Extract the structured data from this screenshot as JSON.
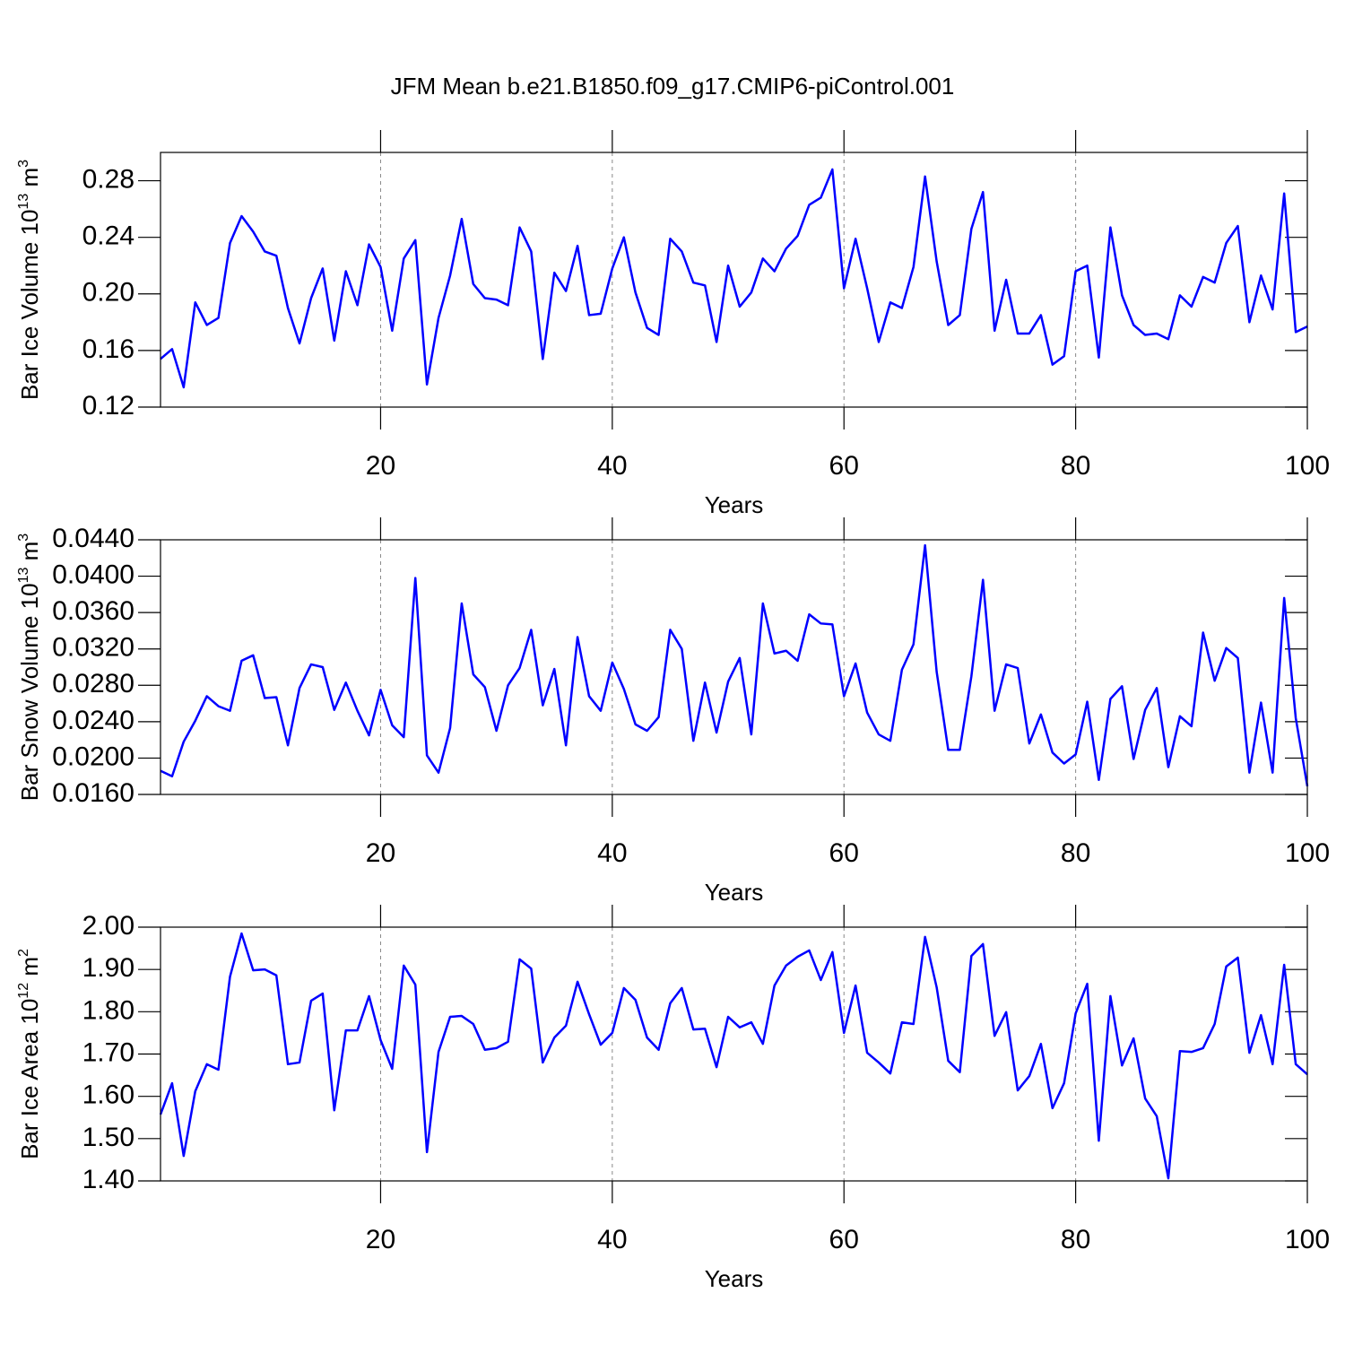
{
  "chart_data": [
    {
      "type": "line",
      "title": "JFM Mean b.e21.B1850.f09_g17.CMIP6-piControl.001",
      "ylabel": [
        "Bar Ice Volume 10",
        "13",
        " m",
        "3"
      ],
      "xlabel": "Years",
      "xlim": [
        1,
        100
      ],
      "xticks": [
        20,
        40,
        60,
        80,
        100
      ],
      "grid": true,
      "ylim": [
        0.12,
        0.3
      ],
      "yticks": [
        {
          "value": 0.12,
          "label": "0.12"
        },
        {
          "value": 0.16,
          "label": "0.16"
        },
        {
          "value": 0.2,
          "label": "0.20"
        },
        {
          "value": 0.24,
          "label": "0.24"
        },
        {
          "value": 0.28,
          "label": "0.28"
        }
      ],
      "x": [
        1,
        2,
        3,
        4,
        5,
        6,
        7,
        8,
        9,
        10,
        11,
        12,
        13,
        14,
        15,
        16,
        17,
        18,
        19,
        20,
        21,
        22,
        23,
        24,
        25,
        26,
        27,
        28,
        29,
        30,
        31,
        32,
        33,
        34,
        35,
        36,
        37,
        38,
        39,
        40,
        41,
        42,
        43,
        44,
        45,
        46,
        47,
        48,
        49,
        50,
        51,
        52,
        53,
        54,
        55,
        56,
        57,
        58,
        59,
        60,
        61,
        62,
        63,
        64,
        65,
        66,
        67,
        68,
        69,
        70,
        71,
        72,
        73,
        74,
        75,
        76,
        77,
        78,
        79,
        80,
        81,
        82,
        83,
        84,
        85,
        86,
        87,
        88,
        89,
        90,
        91,
        92,
        93,
        94,
        95,
        96,
        97,
        98,
        99,
        100
      ],
      "series": [
        {
          "color": "#0000ff",
          "values": [
            0.154,
            0.161,
            0.134,
            0.194,
            0.178,
            0.183,
            0.236,
            0.255,
            0.244,
            0.23,
            0.227,
            0.19,
            0.165,
            0.197,
            0.218,
            0.167,
            0.216,
            0.192,
            0.235,
            0.219,
            0.174,
            0.225,
            0.238,
            0.136,
            0.183,
            0.213,
            0.253,
            0.207,
            0.197,
            0.196,
            0.192,
            0.247,
            0.23,
            0.154,
            0.215,
            0.202,
            0.234,
            0.185,
            0.186,
            0.218,
            0.24,
            0.201,
            0.176,
            0.171,
            0.239,
            0.23,
            0.208,
            0.206,
            0.166,
            0.22,
            0.191,
            0.201,
            0.225,
            0.216,
            0.232,
            0.241,
            0.263,
            0.268,
            0.288,
            0.204,
            0.239,
            0.204,
            0.166,
            0.194,
            0.19,
            0.219,
            0.283,
            0.223,
            0.178,
            0.185,
            0.246,
            0.272,
            0.174,
            0.21,
            0.172,
            0.172,
            0.185,
            0.15,
            0.156,
            0.216,
            0.22,
            0.155,
            0.247,
            0.199,
            0.178,
            0.171,
            0.172,
            0.168,
            0.199,
            0.191,
            0.212,
            0.208,
            0.236,
            0.248,
            0.18,
            0.213,
            0.189,
            0.271,
            0.173,
            0.177
          ]
        }
      ]
    },
    {
      "type": "line",
      "ylabel": [
        "Bar Snow Volume 10",
        "13",
        " m",
        "3"
      ],
      "xlabel": "Years",
      "xlim": [
        1,
        100
      ],
      "xticks": [
        20,
        40,
        60,
        80,
        100
      ],
      "grid": true,
      "ylim": [
        0.016,
        0.044
      ],
      "yticks": [
        {
          "value": 0.016,
          "label": "0.0160"
        },
        {
          "value": 0.02,
          "label": "0.0200"
        },
        {
          "value": 0.024,
          "label": "0.0240"
        },
        {
          "value": 0.028,
          "label": "0.0280"
        },
        {
          "value": 0.032,
          "label": "0.0320"
        },
        {
          "value": 0.036,
          "label": "0.0360"
        },
        {
          "value": 0.04,
          "label": "0.0400"
        },
        {
          "value": 0.044,
          "label": "0.0440"
        }
      ],
      "x": [
        1,
        2,
        3,
        4,
        5,
        6,
        7,
        8,
        9,
        10,
        11,
        12,
        13,
        14,
        15,
        16,
        17,
        18,
        19,
        20,
        21,
        22,
        23,
        24,
        25,
        26,
        27,
        28,
        29,
        30,
        31,
        32,
        33,
        34,
        35,
        36,
        37,
        38,
        39,
        40,
        41,
        42,
        43,
        44,
        45,
        46,
        47,
        48,
        49,
        50,
        51,
        52,
        53,
        54,
        55,
        56,
        57,
        58,
        59,
        60,
        61,
        62,
        63,
        64,
        65,
        66,
        67,
        68,
        69,
        70,
        71,
        72,
        73,
        74,
        75,
        76,
        77,
        78,
        79,
        80,
        81,
        82,
        83,
        84,
        85,
        86,
        87,
        88,
        89,
        90,
        91,
        92,
        93,
        94,
        95,
        96,
        97,
        98,
        99,
        100
      ],
      "series": [
        {
          "color": "#0000ff",
          "values": [
            0.0186,
            0.018,
            0.0218,
            0.0241,
            0.0268,
            0.0257,
            0.0252,
            0.0307,
            0.0313,
            0.0266,
            0.0267,
            0.0214,
            0.0277,
            0.0303,
            0.03,
            0.0253,
            0.0283,
            0.0252,
            0.0225,
            0.0275,
            0.0236,
            0.0223,
            0.0398,
            0.0203,
            0.0184,
            0.0233,
            0.037,
            0.0292,
            0.0278,
            0.023,
            0.028,
            0.0299,
            0.0341,
            0.0258,
            0.0298,
            0.0214,
            0.0333,
            0.0268,
            0.0252,
            0.0305,
            0.0276,
            0.0237,
            0.023,
            0.0245,
            0.0341,
            0.032,
            0.0219,
            0.0283,
            0.0228,
            0.0284,
            0.031,
            0.0226,
            0.037,
            0.0315,
            0.0318,
            0.0307,
            0.0358,
            0.0348,
            0.0347,
            0.0268,
            0.0304,
            0.025,
            0.0226,
            0.0219,
            0.0297,
            0.0325,
            0.0434,
            0.0295,
            0.0209,
            0.0209,
            0.029,
            0.0396,
            0.0252,
            0.0303,
            0.0299,
            0.0216,
            0.0248,
            0.0206,
            0.0194,
            0.0204,
            0.0262,
            0.0176,
            0.0265,
            0.0279,
            0.0199,
            0.0253,
            0.0277,
            0.019,
            0.0246,
            0.0235,
            0.0338,
            0.0285,
            0.0321,
            0.031,
            0.0184,
            0.0261,
            0.0184,
            0.0376,
            0.0244,
            0.0169
          ]
        }
      ]
    },
    {
      "type": "line",
      "ylabel": [
        "Bar Ice Area 10",
        "12",
        " m",
        "2"
      ],
      "xlabel": "Years",
      "xlim": [
        1,
        100
      ],
      "xticks": [
        20,
        40,
        60,
        80,
        100
      ],
      "grid": true,
      "ylim": [
        1.4,
        2.0
      ],
      "yticks": [
        {
          "value": 1.4,
          "label": "1.40"
        },
        {
          "value": 1.5,
          "label": "1.50"
        },
        {
          "value": 1.6,
          "label": "1.60"
        },
        {
          "value": 1.7,
          "label": "1.70"
        },
        {
          "value": 1.8,
          "label": "1.80"
        },
        {
          "value": 1.9,
          "label": "1.90"
        },
        {
          "value": 2.0,
          "label": "2.00"
        }
      ],
      "x": [
        1,
        2,
        3,
        4,
        5,
        6,
        7,
        8,
        9,
        10,
        11,
        12,
        13,
        14,
        15,
        16,
        17,
        18,
        19,
        20,
        21,
        22,
        23,
        24,
        25,
        26,
        27,
        28,
        29,
        30,
        31,
        32,
        33,
        34,
        35,
        36,
        37,
        38,
        39,
        40,
        41,
        42,
        43,
        44,
        45,
        46,
        47,
        48,
        49,
        50,
        51,
        52,
        53,
        54,
        55,
        56,
        57,
        58,
        59,
        60,
        61,
        62,
        63,
        64,
        65,
        66,
        67,
        68,
        69,
        70,
        71,
        72,
        73,
        74,
        75,
        76,
        77,
        78,
        79,
        80,
        81,
        82,
        83,
        84,
        85,
        86,
        87,
        88,
        89,
        90,
        91,
        92,
        93,
        94,
        95,
        96,
        97,
        98,
        99,
        100
      ],
      "series": [
        {
          "color": "#0000ff",
          "values": [
            1.557,
            1.631,
            1.459,
            1.612,
            1.676,
            1.663,
            1.883,
            1.985,
            1.898,
            1.9,
            1.886,
            1.676,
            1.68,
            1.826,
            1.843,
            1.567,
            1.756,
            1.756,
            1.837,
            1.733,
            1.665,
            1.909,
            1.864,
            1.468,
            1.705,
            1.788,
            1.79,
            1.771,
            1.71,
            1.714,
            1.729,
            1.924,
            1.902,
            1.68,
            1.739,
            1.767,
            1.871,
            1.794,
            1.722,
            1.75,
            1.856,
            1.828,
            1.739,
            1.71,
            1.82,
            1.856,
            1.758,
            1.76,
            1.669,
            1.788,
            1.763,
            1.775,
            1.724,
            1.862,
            1.909,
            1.93,
            1.945,
            1.875,
            1.941,
            1.75,
            1.862,
            1.703,
            1.68,
            1.654,
            1.775,
            1.771,
            1.977,
            1.858,
            1.684,
            1.657,
            1.932,
            1.96,
            1.743,
            1.799,
            1.614,
            1.648,
            1.724,
            1.572,
            1.631,
            1.796,
            1.866,
            1.495,
            1.837,
            1.673,
            1.737,
            1.595,
            1.553,
            1.406,
            1.707,
            1.705,
            1.714,
            1.771,
            1.907,
            1.928,
            1.703,
            1.792,
            1.676,
            1.911,
            1.676,
            1.652
          ]
        }
      ]
    }
  ]
}
